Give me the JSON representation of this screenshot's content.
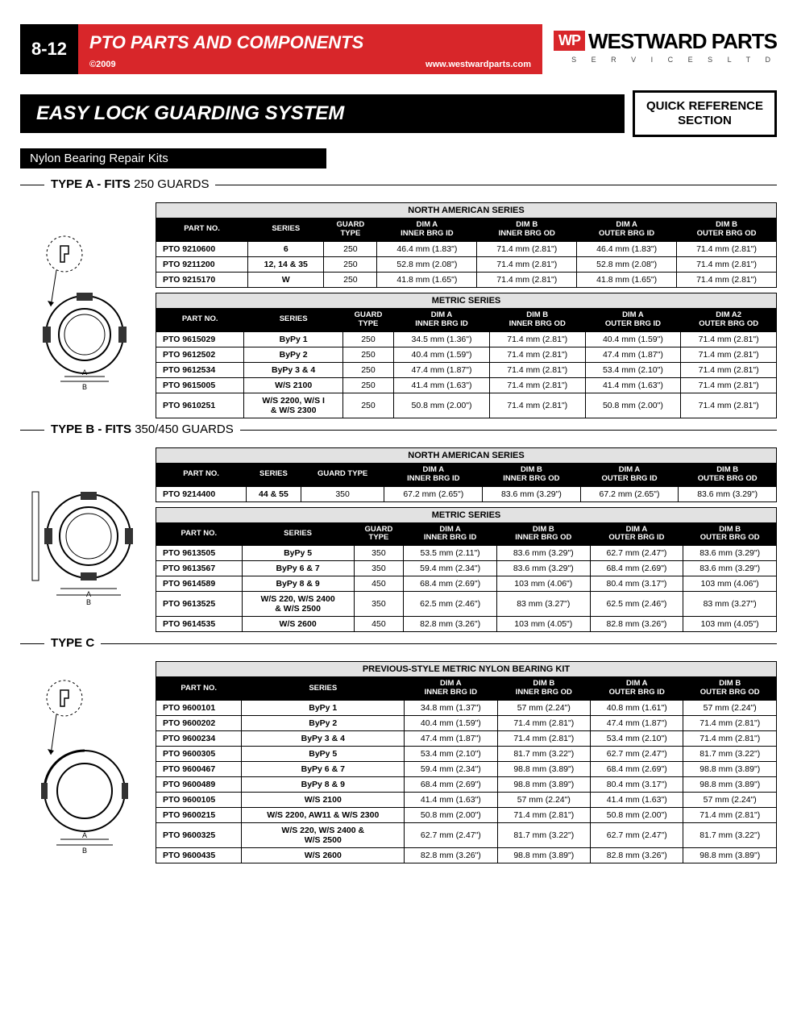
{
  "header": {
    "page_num": "8-12",
    "title": "PTO PARTS AND COMPONENTS",
    "copyright": "©2009",
    "url": "www.westwardparts.com",
    "logo_wp": "WP",
    "logo_main": "WESTWARD PARTS",
    "logo_sub": "S E R V I C E S   L T D"
  },
  "section_title": "EASY LOCK GUARDING SYSTEM",
  "quickref_l1": "QUICK REFERENCE",
  "quickref_l2": "SECTION",
  "subheader": "Nylon Bearing Repair Kits",
  "typeA": {
    "label_bold": "TYPE A - FITS",
    "label_thin": "250 GUARDS",
    "t1": {
      "title": "NORTH AMERICAN SERIES",
      "cols": [
        "PART NO.",
        "SERIES",
        "GUARD\nTYPE",
        "DIM A\nINNER BRG ID",
        "DIM B\nINNER BRG OD",
        "DIM A\nOUTER BRG ID",
        "DIM B\nOUTER BRG OD"
      ],
      "rows": [
        [
          "PTO 9210600",
          "6",
          "250",
          "46.4 mm (1.83\")",
          "71.4 mm (2.81\")",
          "46.4 mm (1.83\")",
          "71.4 mm (2.81\")"
        ],
        [
          "PTO 9211200",
          "12, 14 & 35",
          "250",
          "52.8 mm (2.08\")",
          "71.4 mm (2.81\")",
          "52.8 mm (2.08\")",
          "71.4 mm (2.81\")"
        ],
        [
          "PTO 9215170",
          "W",
          "250",
          "41.8 mm (1.65\")",
          "71.4 mm (2.81\")",
          "41.8 mm (1.65\")",
          "71.4 mm (2.81\")"
        ]
      ]
    },
    "t2": {
      "title": "METRIC SERIES",
      "cols": [
        "PART NO.",
        "SERIES",
        "GUARD\nTYPE",
        "DIM A\nINNER BRG ID",
        "DIM B\nINNER BRG OD",
        "DIM A\nOUTER BRG ID",
        "DIM A2\nOUTER BRG OD"
      ],
      "rows": [
        [
          "PTO 9615029",
          "ByPy 1",
          "250",
          "34.5 mm (1.36\")",
          "71.4 mm (2.81\")",
          "40.4 mm (1.59\")",
          "71.4 mm (2.81\")"
        ],
        [
          "PTO 9612502",
          "ByPy 2",
          "250",
          "40.4 mm (1.59\")",
          "71.4 mm (2.81\")",
          "47.4 mm (1.87\")",
          "71.4 mm (2.81\")"
        ],
        [
          "PTO 9612534",
          "ByPy 3 & 4",
          "250",
          "47.4 mm (1.87\")",
          "71.4 mm (2.81\")",
          "53.4 mm (2.10\")",
          "71.4 mm (2.81\")"
        ],
        [
          "PTO 9615005",
          "W/S 2100",
          "250",
          "41.4 mm (1.63\")",
          "71.4 mm (2.81\")",
          "41.4 mm (1.63\")",
          "71.4 mm (2.81\")"
        ],
        [
          "PTO 9610251",
          "W/S 2200, W/S I\n& W/S 2300",
          "250",
          "50.8 mm (2.00\")",
          "71.4 mm (2.81\")",
          "50.8 mm (2.00\")",
          "71.4 mm (2.81\")"
        ]
      ]
    }
  },
  "typeB": {
    "label_bold": "TYPE B - FITS",
    "label_thin": "350/450 GUARDS",
    "t1": {
      "title": "NORTH AMERICAN SERIES",
      "cols": [
        "PART NO.",
        "SERIES",
        "GUARD TYPE",
        "DIM A\nINNER BRG ID",
        "DIM B\nINNER BRG OD",
        "DIM A\nOUTER BRG ID",
        "DIM B\nOUTER BRG OD"
      ],
      "rows": [
        [
          "PTO 9214400",
          "44 & 55",
          "350",
          "67.2 mm (2.65\")",
          "83.6 mm (3.29\")",
          "67.2 mm (2.65\")",
          "83.6 mm (3.29\")"
        ]
      ]
    },
    "t2": {
      "title": "METRIC SERIES",
      "cols": [
        "PART NO.",
        "SERIES",
        "GUARD\nTYPE",
        "DIM A\nINNER BRG ID",
        "DIM B\nINNER BRG OD",
        "DIM A\nOUTER BRG ID",
        "DIM B\nOUTER BRG OD"
      ],
      "rows": [
        [
          "PTO 9613505",
          "ByPy 5",
          "350",
          "53.5 mm (2.11\")",
          "83.6 mm (3.29\")",
          "62.7 mm (2.47\")",
          "83.6 mm (3.29\")"
        ],
        [
          "PTO 9613567",
          "ByPy 6 & 7",
          "350",
          "59.4 mm (2.34\")",
          "83.6 mm (3.29\")",
          "68.4 mm (2.69\")",
          "83.6 mm (3.29\")"
        ],
        [
          "PTO 9614589",
          "ByPy 8 & 9",
          "450",
          "68.4 mm (2.69\")",
          "103 mm (4.06\")",
          "80.4 mm (3.17\")",
          "103 mm (4.06\")"
        ],
        [
          "PTO 9613525",
          "W/S 220, W/S 2400\n& W/S 2500",
          "350",
          "62.5 mm (2.46\")",
          "83 mm (3.27\")",
          "62.5 mm (2.46\")",
          "83 mm (3.27\")"
        ],
        [
          "PTO 9614535",
          "W/S 2600",
          "450",
          "82.8 mm (3.26\")",
          "103 mm (4.05\")",
          "82.8 mm (3.26\")",
          "103 mm (4.05\")"
        ]
      ]
    }
  },
  "typeC": {
    "label_bold": "TYPE C",
    "t1": {
      "title": "PREVIOUS-STYLE METRIC NYLON BEARING KIT",
      "cols": [
        "PART NO.",
        "SERIES",
        "DIM A\nINNER BRG ID",
        "DIM B\nINNER BRG OD",
        "DIM A\nOUTER BRG ID",
        "DIM B\nOUTER BRG OD"
      ],
      "rows": [
        [
          "PTO 9600101",
          "ByPy 1",
          "34.8 mm (1.37\")",
          "57 mm (2.24\")",
          "40.8 mm (1.61\")",
          "57 mm (2.24\")"
        ],
        [
          "PTO 9600202",
          "ByPy 2",
          "40.4 mm (1.59\")",
          "71.4 mm (2.81\")",
          "47.4 mm (1.87\")",
          "71.4 mm (2.81\")"
        ],
        [
          "PTO 9600234",
          "ByPy 3 & 4",
          "47.4 mm (1.87\")",
          "71.4 mm (2.81\")",
          "53.4 mm (2.10\")",
          "71.4 mm (2.81\")"
        ],
        [
          "PTO 9600305",
          "ByPy 5",
          "53.4 mm (2.10\")",
          "81.7 mm (3.22\")",
          "62.7 mm (2.47\")",
          "81.7 mm (3.22\")"
        ],
        [
          "PTO 9600467",
          "ByPy 6 & 7",
          "59.4 mm (2.34\")",
          "98.8 mm (3.89\")",
          "68.4 mm (2.69\")",
          "98.8 mm (3.89\")"
        ],
        [
          "PTO 9600489",
          "ByPy 8 & 9",
          "68.4 mm (2.69\")",
          "98.8 mm (3.89\")",
          "80.4 mm (3.17\")",
          "98.8 mm (3.89\")"
        ],
        [
          "PTO 9600105",
          "W/S 2100",
          "41.4 mm (1.63\")",
          "57 mm (2.24\")",
          "41.4 mm (1.63\")",
          "57 mm (2.24\")"
        ],
        [
          "PTO 9600215",
          "W/S 2200, AW11 & W/S 2300",
          "50.8 mm (2.00\")",
          "71.4 mm (2.81\")",
          "50.8 mm (2.00\")",
          "71.4 mm (2.81\")"
        ],
        [
          "PTO 9600325",
          "W/S 220, W/S 2400 &\nW/S 2500",
          "62.7 mm (2.47\")",
          "81.7 mm (3.22\")",
          "62.7 mm (2.47\")",
          "81.7 mm (3.22\")"
        ],
        [
          "PTO 9600435",
          "W/S 2600",
          "82.8 mm (3.26\")",
          "98.8 mm (3.89\")",
          "82.8 mm (3.26\")",
          "98.8 mm (3.89\")"
        ]
      ]
    }
  }
}
